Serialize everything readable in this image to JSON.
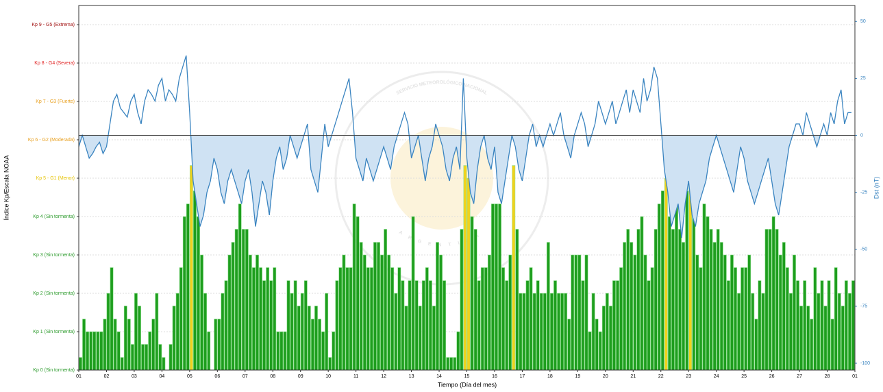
{
  "chart_data": {
    "type": "bar",
    "xlabel": "Tiempo (Día del mes)",
    "ylabel": "Índice Kp/Escala NOAA",
    "y2label": "Dst (nT)",
    "watermark": {
      "top": "SERVICIO METEOROLÓGICO NACIONAL",
      "bottom": "ARGENTINA"
    },
    "xlim": [
      0,
      28
    ],
    "xticks": [
      {
        "value": 0,
        "label": "01"
      },
      {
        "value": 1,
        "label": "02"
      },
      {
        "value": 2,
        "label": "03"
      },
      {
        "value": 3,
        "label": "04"
      },
      {
        "value": 4,
        "label": "05"
      },
      {
        "value": 5,
        "label": "06"
      },
      {
        "value": 6,
        "label": "07"
      },
      {
        "value": 7,
        "label": "08"
      },
      {
        "value": 8,
        "label": "09"
      },
      {
        "value": 9,
        "label": "10"
      },
      {
        "value": 10,
        "label": "11"
      },
      {
        "value": 11,
        "label": "12"
      },
      {
        "value": 12,
        "label": "13"
      },
      {
        "value": 13,
        "label": "14"
      },
      {
        "value": 14,
        "label": "15"
      },
      {
        "value": 15,
        "label": "16"
      },
      {
        "value": 16,
        "label": "17"
      },
      {
        "value": 17,
        "label": "18"
      },
      {
        "value": 18,
        "label": "19"
      },
      {
        "value": 19,
        "label": "20"
      },
      {
        "value": 20,
        "label": "21"
      },
      {
        "value": 21,
        "label": "22"
      },
      {
        "value": 22,
        "label": "23"
      },
      {
        "value": 23,
        "label": "24"
      },
      {
        "value": 24,
        "label": "25"
      },
      {
        "value": 25,
        "label": "26"
      },
      {
        "value": 26,
        "label": "27"
      },
      {
        "value": 27,
        "label": "28"
      },
      {
        "value": 28,
        "label": "01"
      }
    ],
    "ylim": [
      0,
      9.5
    ],
    "yticks": [
      {
        "value": 0,
        "label": "Kp 0 (Sin tormenta)",
        "color": "#2a9a2a"
      },
      {
        "value": 1,
        "label": "Kp 1 (Sin tormenta)",
        "color": "#2a9a2a"
      },
      {
        "value": 2,
        "label": "Kp 2 (Sin tormenta)",
        "color": "#2a9a2a"
      },
      {
        "value": 3,
        "label": "Kp 3 (Sin tormenta)",
        "color": "#2a9a2a"
      },
      {
        "value": 4,
        "label": "Kp 4 (Sin tormenta)",
        "color": "#2a9a2a"
      },
      {
        "value": 5,
        "label": "Kp 5 - G1 (Menor)",
        "color": "#e6c300"
      },
      {
        "value": 6,
        "label": "Kp 6 - G2 (Moderada)",
        "color": "#e8a020"
      },
      {
        "value": 7,
        "label": "Kp 7 - G3 (Fuerte)",
        "color": "#e8a020"
      },
      {
        "value": 8,
        "label": "Kp 8 - G4 (Severa)",
        "color": "#e02020"
      },
      {
        "value": 9,
        "label": "Kp 9 - G5 (Extrema)",
        "color": "#a01010"
      }
    ],
    "y2lim": [
      -103,
      57
    ],
    "y2ticks": [
      50,
      25,
      0,
      -25,
      -50,
      -75,
      -100
    ],
    "y2_refline": 0,
    "grid": true,
    "x": [
      0,
      0.125,
      0.25,
      0.375,
      0.5,
      0.625,
      0.75,
      0.875,
      1,
      1.125,
      1.25,
      1.375,
      1.5,
      1.625,
      1.75,
      1.875,
      2,
      2.125,
      2.25,
      2.375,
      2.5,
      2.625,
      2.75,
      2.875,
      3,
      3.125,
      3.25,
      3.375,
      3.5,
      3.625,
      3.75,
      3.875,
      4,
      4.125,
      4.25,
      4.375,
      4.5,
      4.625,
      4.75,
      4.875,
      5,
      5.125,
      5.25,
      5.375,
      5.5,
      5.625,
      5.75,
      5.875,
      6,
      6.125,
      6.25,
      6.375,
      6.5,
      6.625,
      6.75,
      6.875,
      7,
      7.125,
      7.25,
      7.375,
      7.5,
      7.625,
      7.75,
      7.875,
      8,
      8.125,
      8.25,
      8.375,
      8.5,
      8.625,
      8.75,
      8.875,
      9,
      9.125,
      9.25,
      9.375,
      9.5,
      9.625,
      9.75,
      9.875,
      10,
      10.125,
      10.25,
      10.375,
      10.5,
      10.625,
      10.75,
      10.875,
      11,
      11.125,
      11.25,
      11.375,
      11.5,
      11.625,
      11.75,
      11.875,
      12,
      12.125,
      12.25,
      12.375,
      12.5,
      12.625,
      12.75,
      12.875,
      13,
      13.125,
      13.25,
      13.375,
      13.5,
      13.625,
      13.75,
      13.875,
      14,
      14.125,
      14.25,
      14.375,
      14.5,
      14.625,
      14.75,
      14.875,
      15,
      15.125,
      15.25,
      15.375,
      15.5,
      15.625,
      15.75,
      15.875,
      16,
      16.125,
      16.25,
      16.375,
      16.5,
      16.625,
      16.75,
      16.875,
      17,
      17.125,
      17.25,
      17.375,
      17.5,
      17.625,
      17.75,
      17.875,
      18,
      18.125,
      18.25,
      18.375,
      18.5,
      18.625,
      18.75,
      18.875,
      19,
      19.125,
      19.25,
      19.375,
      19.5,
      19.625,
      19.75,
      19.875,
      20,
      20.125,
      20.25,
      20.375,
      20.5,
      20.625,
      20.75,
      20.875,
      21,
      21.125,
      21.25,
      21.375,
      21.5,
      21.625,
      21.75,
      21.875,
      22,
      22.125,
      22.25,
      22.375,
      22.5,
      22.625,
      22.75,
      22.875,
      23,
      23.125,
      23.25,
      23.375,
      23.5,
      23.625,
      23.75,
      23.875,
      24,
      24.125,
      24.25,
      24.375,
      24.5,
      24.625,
      24.75,
      24.875,
      25,
      25.125,
      25.25,
      25.375,
      25.5,
      25.625,
      25.75,
      25.875,
      26,
      26.125,
      26.25,
      26.375,
      26.5,
      26.625,
      26.75,
      26.875,
      27,
      27.125,
      27.25,
      27.375,
      27.5,
      27.625,
      27.75,
      27.875
    ],
    "series": [
      {
        "type": "bar",
        "color": "#1e9e1e",
        "edge_color": "#8fe08f",
        "color_thresholds": [
          {
            "min": 5,
            "color": "#f2d21b"
          }
        ],
        "values": [
          0.33,
          1.33,
          1,
          1,
          1,
          1,
          1,
          1.33,
          2,
          2.67,
          1.33,
          1,
          0.33,
          1.67,
          1.33,
          0.67,
          2,
          1.67,
          0.67,
          0.67,
          1,
          1.33,
          2,
          0.67,
          0.33,
          0,
          0.67,
          1.67,
          2,
          2.67,
          4,
          4.33,
          5.33,
          4.67,
          4,
          3,
          2,
          1,
          0,
          1.33,
          1.33,
          2,
          2.33,
          3,
          3.33,
          3.67,
          4.33,
          3.67,
          3.67,
          3,
          2.67,
          3,
          2.67,
          2.33,
          2.67,
          2.33,
          2.67,
          1,
          1,
          1,
          2.33,
          2,
          2.33,
          1.67,
          2,
          2.33,
          1.67,
          1.33,
          1.67,
          1.33,
          1,
          2,
          0.33,
          1,
          2.33,
          2.67,
          3,
          2.67,
          2.67,
          4.33,
          4,
          3.33,
          3,
          2.67,
          2.67,
          3.33,
          3.33,
          3,
          3.67,
          3,
          2.67,
          2,
          2.67,
          2.33,
          1.67,
          2.33,
          4,
          2.33,
          1.67,
          2.33,
          2.67,
          2.33,
          1.67,
          3.33,
          3,
          2.33,
          0.33,
          0.33,
          0.33,
          1,
          3.67,
          5.33,
          5,
          4,
          3.67,
          2.33,
          2.67,
          2.67,
          3,
          4.33,
          4.33,
          4.33,
          2.67,
          2.33,
          3,
          5.33,
          3.67,
          2,
          2,
          2.33,
          2.67,
          2,
          2.33,
          2,
          2,
          3.33,
          2,
          2.33,
          2,
          2,
          2,
          1.33,
          3,
          3,
          3,
          2.33,
          3,
          1,
          2,
          1.33,
          1,
          1.67,
          2,
          1.67,
          2.33,
          2.33,
          2.67,
          3.33,
          3.67,
          3.33,
          3,
          3.67,
          4,
          3,
          2.33,
          2.67,
          3.67,
          4.33,
          4.67,
          5,
          4,
          3.67,
          4.33,
          3.67,
          3.33,
          4.67,
          5.33,
          4,
          3,
          2.67,
          4.33,
          4,
          3.67,
          3.33,
          3.67,
          3.33,
          3,
          2.33,
          3,
          2.67,
          2,
          2.67,
          2.67,
          3,
          2,
          1.33,
          2.33,
          2,
          3.67,
          3.67,
          4,
          3.67,
          3,
          3.33,
          2.67,
          2,
          3,
          2.33,
          1.67,
          2.33,
          1.67,
          1.33,
          2.67,
          2,
          2.33,
          1.67,
          2.33,
          1.33,
          2.67,
          2,
          1.67,
          2.33,
          2,
          2.33
        ]
      },
      {
        "type": "line",
        "axis": "y2",
        "color": "#3a84c0",
        "fill_below_zero": "#cfe2f3",
        "values": [
          -5,
          0,
          -5,
          -10,
          -8,
          -5,
          -3,
          -8,
          -5,
          5,
          15,
          18,
          12,
          10,
          8,
          15,
          18,
          10,
          5,
          15,
          20,
          18,
          15,
          22,
          25,
          15,
          20,
          18,
          15,
          25,
          30,
          35,
          10,
          -20,
          -30,
          -40,
          -35,
          -25,
          -20,
          -10,
          -15,
          -25,
          -30,
          -20,
          -15,
          -20,
          -25,
          -30,
          -20,
          -15,
          -25,
          -40,
          -30,
          -20,
          -25,
          -35,
          -20,
          -10,
          -5,
          -15,
          -10,
          0,
          -5,
          -10,
          -5,
          0,
          5,
          -15,
          -20,
          -25,
          -10,
          5,
          -5,
          0,
          5,
          10,
          15,
          20,
          25,
          10,
          -10,
          -15,
          -20,
          -10,
          -15,
          -20,
          -15,
          -10,
          -5,
          -10,
          -15,
          -5,
          0,
          5,
          10,
          5,
          -10,
          -5,
          0,
          -10,
          -20,
          -10,
          -5,
          5,
          0,
          -5,
          -15,
          -20,
          -10,
          -5,
          -15,
          25,
          -10,
          -25,
          -30,
          -15,
          -5,
          0,
          -10,
          -15,
          -5,
          -25,
          -30,
          -20,
          -10,
          0,
          -5,
          -15,
          -20,
          -10,
          0,
          5,
          -5,
          0,
          -5,
          0,
          5,
          0,
          5,
          10,
          0,
          -5,
          -10,
          0,
          5,
          10,
          5,
          -5,
          0,
          5,
          15,
          10,
          5,
          10,
          15,
          5,
          10,
          15,
          20,
          10,
          20,
          15,
          10,
          25,
          15,
          20,
          30,
          25,
          5,
          -15,
          -25,
          -40,
          -35,
          -30,
          -45,
          -30,
          -20,
          -35,
          -40,
          -30,
          -25,
          -20,
          -10,
          -5,
          0,
          -5,
          -10,
          -15,
          -20,
          -25,
          -15,
          -5,
          -10,
          -20,
          -25,
          -30,
          -25,
          -20,
          -15,
          -10,
          -20,
          -30,
          -35,
          -25,
          -15,
          -5,
          0,
          5,
          5,
          0,
          10,
          5,
          0,
          -5,
          0,
          5,
          0,
          10,
          5,
          15,
          20,
          5,
          10,
          10
        ]
      }
    ]
  }
}
